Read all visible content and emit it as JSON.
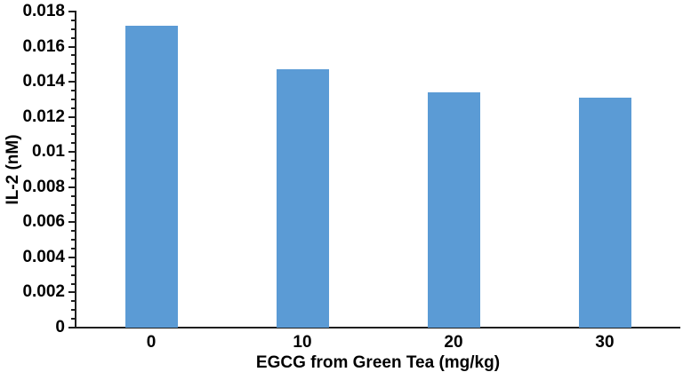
{
  "chart_data": {
    "type": "bar",
    "categories": [
      "0",
      "10",
      "20",
      "30"
    ],
    "values": [
      0.0172,
      0.0147,
      0.0134,
      0.0131
    ],
    "xlabel": "EGCG from Green Tea (mg/kg)",
    "ylabel": "IL-2 (nM)",
    "ylim": [
      0,
      0.018
    ],
    "y_major_step": 0.002,
    "y_minor_step": 0.0005,
    "y_tick_labels": [
      "0",
      "0.002",
      "0.004",
      "0.006",
      "0.008",
      "0.01",
      "0.012",
      "0.014",
      "0.016",
      "0.018"
    ],
    "grid": false,
    "legend": null,
    "colors": {
      "bar": "#5B9BD5",
      "axis": "#1F1F1F",
      "text": "#000000",
      "background": "#FFFFFF"
    }
  }
}
